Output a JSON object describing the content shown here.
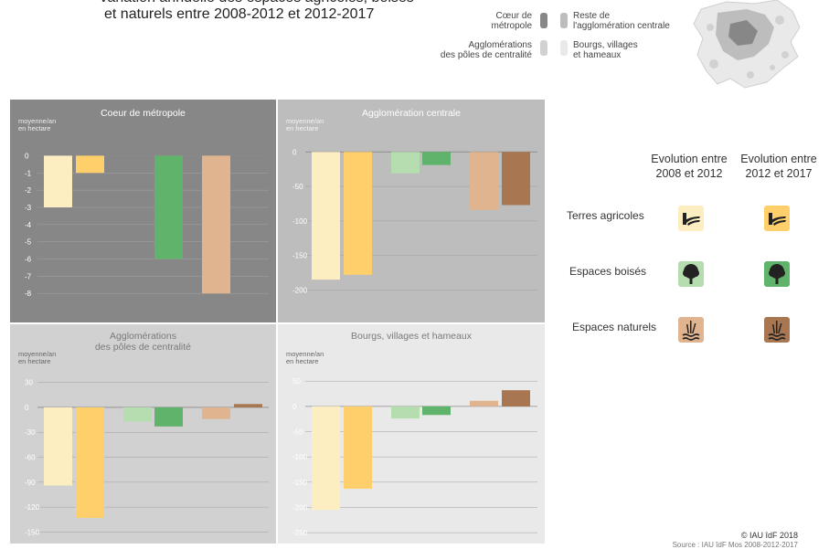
{
  "title": {
    "line1": "Variation annuelle des espaces agricoles, boisés",
    "line2": "et naturels entre 2008-2012 et 2012-2017"
  },
  "map_legend": {
    "coeur": "Cœur de\nmétropole",
    "agglo_poles": "Agglomérations\ndes pôles de centralité",
    "reste": "Reste de\nl'agglomération centrale",
    "bourgs": "Bourgs, villages\net hameaux"
  },
  "colors": {
    "agri_2008": "#fdeec2",
    "agri_2012": "#fecf6a",
    "bois_2008": "#b6ddb0",
    "bois_2012": "#5fb36a",
    "nat_2008": "#dfb48e",
    "nat_2012": "#a87752",
    "panel_coeur": "#878787",
    "panel_centrale": "#bdbdbd",
    "panel_poles": "#d1d1d1",
    "panel_bourgs": "#e9e9e9"
  },
  "unit_label": "moyenne/an\nen hectare",
  "chart_data": [
    {
      "type": "bar",
      "title": "Coeur de métropole",
      "ylim": [
        -8.2,
        0.5
      ],
      "yticks": [
        0,
        -1,
        -2,
        -3,
        -4,
        -5,
        -6,
        -7,
        -8
      ],
      "series": [
        {
          "name": "Terres agricoles 2008-2012",
          "value": -3
        },
        {
          "name": "Terres agricoles 2012-2017",
          "value": -1
        },
        {
          "name": "Espaces boisés 2008-2012",
          "value": 0
        },
        {
          "name": "Espaces boisés 2012-2017",
          "value": -6
        },
        {
          "name": "Espaces naturels 2008-2012",
          "value": -8
        },
        {
          "name": "Espaces naturels 2012-2017",
          "value": 0
        }
      ]
    },
    {
      "type": "bar",
      "title": "Agglomération centrale",
      "ylim": [
        -210,
        7
      ],
      "yticks": [
        0,
        -50,
        -100,
        -150,
        -200
      ],
      "series": [
        {
          "name": "Terres agricoles 2008-2012",
          "value": -185
        },
        {
          "name": "Terres agricoles 2012-2017",
          "value": -178
        },
        {
          "name": "Espaces boisés 2008-2012",
          "value": -31
        },
        {
          "name": "Espaces boisés 2012-2017",
          "value": -19
        },
        {
          "name": "Espaces naturels 2008-2012",
          "value": -84
        },
        {
          "name": "Espaces naturels 2012-2017",
          "value": -77
        }
      ]
    },
    {
      "type": "bar",
      "title": "Agglomérations\ndes pôles de centralité",
      "ylim": [
        -155,
        34
      ],
      "yticks": [
        30,
        0,
        -30,
        -60,
        -90,
        -120,
        -150
      ],
      "series": [
        {
          "name": "Terres agricoles 2008-2012",
          "value": -94
        },
        {
          "name": "Terres agricoles 2012-2017",
          "value": -133
        },
        {
          "name": "Espaces boisés 2008-2012",
          "value": -17
        },
        {
          "name": "Espaces boisés 2012-2017",
          "value": -23
        },
        {
          "name": "Espaces naturels 2008-2012",
          "value": -14
        },
        {
          "name": "Espaces naturels 2012-2017",
          "value": 4
        }
      ]
    },
    {
      "type": "bar",
      "title": "Bourgs, villages et hameaux",
      "ylim": [
        -257,
        54
      ],
      "yticks": [
        50,
        0,
        -50,
        -100,
        -150,
        -200,
        -250
      ],
      "series": [
        {
          "name": "Terres agricoles 2008-2012",
          "value": -205
        },
        {
          "name": "Terres agricoles 2012-2017",
          "value": -163
        },
        {
          "name": "Espaces boisés 2008-2012",
          "value": -24
        },
        {
          "name": "Espaces boisés 2012-2017",
          "value": -17
        },
        {
          "name": "Espaces naturels 2008-2012",
          "value": 11
        },
        {
          "name": "Espaces naturels 2012-2017",
          "value": 32
        }
      ]
    }
  ],
  "right_legend": {
    "col1": "Evolution entre\n2008 et 2012",
    "col2": "Evolution entre\n2012 et 2017",
    "rows": [
      "Terres agricoles",
      "Espaces boisés",
      "Espaces naturels"
    ],
    "icons": [
      "field-icon",
      "tree-icon",
      "reeds-water-icon"
    ]
  },
  "credit": "© IAU îdF 2018",
  "source": "Source : IAU îdF Mos 2008-2012-2017"
}
